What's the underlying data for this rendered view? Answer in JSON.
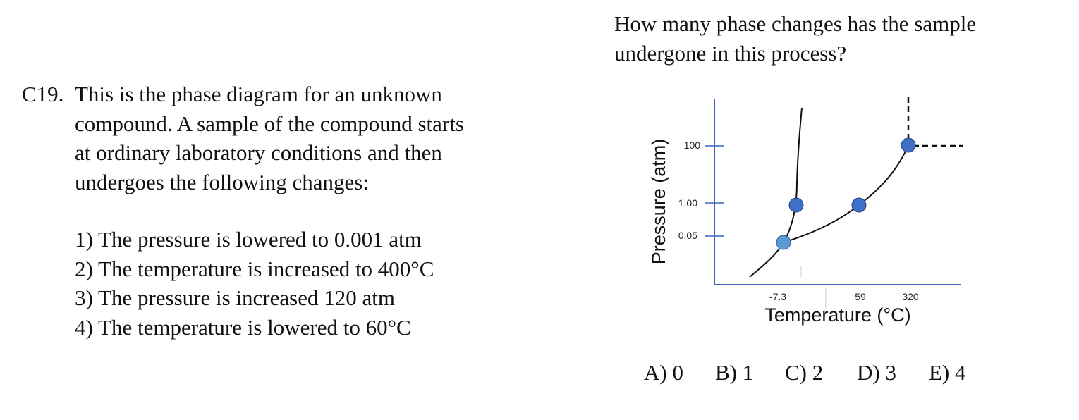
{
  "question": {
    "number": "C19.",
    "stem_lines": [
      "This is the phase diagram for an unknown",
      "compound. A sample of the compound starts",
      "at ordinary laboratory conditions and then",
      "undergoes the following changes:"
    ],
    "steps": [
      "1) The pressure is lowered to 0.001 atm",
      "2) The temperature is increased to 400°C",
      "3) The pressure is increased 120 atm",
      "4) The temperature is lowered to 60°C"
    ],
    "prompt_lines": [
      "How many phase changes has the sample",
      "undergone in this process?"
    ],
    "choices": [
      "A) 0",
      "B) 1",
      "C) 2",
      "D) 3",
      "E) 4"
    ]
  },
  "diagram": {
    "y_axis_label": "Pressure (atm)",
    "x_axis_label": "Temperature (°C)",
    "y_ticks": [
      "100",
      "1.00",
      "0.05"
    ],
    "x_ticks": [
      "-7.3",
      "59",
      "320"
    ],
    "colors": {
      "axis": "#3a66b5",
      "point_dark": "#3f6fc8",
      "point_triple": "#5b9bd5",
      "curve": "#111111"
    }
  }
}
